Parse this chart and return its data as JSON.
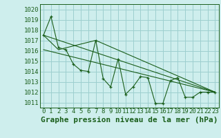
{
  "title": "Graphe pression niveau de la mer (hPa)",
  "bg_color": "#ceeeed",
  "grid_color": "#9dcfcf",
  "line_color": "#1a5e1a",
  "xlim": [
    -0.5,
    23.5
  ],
  "ylim": [
    1010.5,
    1020.5
  ],
  "yticks": [
    1011,
    1012,
    1013,
    1014,
    1015,
    1016,
    1017,
    1018,
    1019,
    1020
  ],
  "xticks": [
    0,
    1,
    2,
    3,
    4,
    5,
    6,
    7,
    8,
    9,
    10,
    11,
    12,
    13,
    14,
    15,
    16,
    17,
    18,
    19,
    20,
    21,
    22,
    23
  ],
  "series_main": {
    "x": [
      0,
      1,
      2,
      3,
      4,
      5,
      6,
      7,
      8,
      9,
      10,
      11,
      12,
      13,
      14,
      15,
      16,
      17,
      18,
      19,
      20,
      21,
      22,
      23
    ],
    "y": [
      1017.5,
      1019.3,
      1016.3,
      1016.1,
      1014.7,
      1014.1,
      1014.0,
      1017.0,
      1013.3,
      1012.5,
      1015.2,
      1011.8,
      1012.5,
      1013.5,
      1013.4,
      1010.9,
      1010.9,
      1013.1,
      1013.4,
      1011.5,
      1011.5,
      1012.0,
      1012.0,
      1012.0
    ]
  },
  "series_lines": [
    {
      "x": [
        0,
        2,
        7,
        23
      ],
      "y": [
        1017.5,
        1016.1,
        1017.0,
        1012.0
      ]
    },
    {
      "x": [
        0,
        23
      ],
      "y": [
        1017.5,
        1012.0
      ]
    },
    {
      "x": [
        0,
        23
      ],
      "y": [
        1016.1,
        1012.0
      ]
    }
  ],
  "title_fontsize": 8,
  "tick_fontsize": 6.5
}
